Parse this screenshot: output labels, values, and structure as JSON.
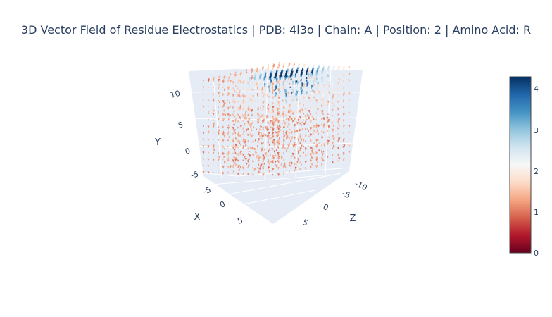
{
  "title": "3D Vector Field of Residue Electrostatics | PDB: 4l3o | Chain: A | Position: 2 | Amino Acid: R",
  "chart_data": {
    "type": "cone",
    "title": "3D Vector Field of Residue Electrostatics | PDB: 4l3o | Chain: A | Position: 2 | Amino Acid: R",
    "axes": {
      "x": {
        "label": "X",
        "ticks": [
          "-5",
          "0",
          "5"
        ],
        "range": [
          -10,
          8
        ]
      },
      "y": {
        "label": "Y",
        "ticks": [
          "-5",
          "0",
          "5",
          "10"
        ],
        "range": [
          -7,
          13
        ]
      },
      "z": {
        "label": "Z",
        "ticks": [
          "-10",
          "-5",
          "0",
          "5"
        ],
        "range": [
          -12,
          8
        ]
      }
    },
    "colorbar": {
      "colorscale": "RdBu",
      "range": [
        0,
        4.25
      ],
      "ticks": [
        "0",
        "1",
        "2",
        "3",
        "4"
      ],
      "colors": [
        "#67001f",
        "#b2182b",
        "#d6604d",
        "#f4a582",
        "#fddbc7",
        "#f7f7f7",
        "#d1e5f0",
        "#92c5de",
        "#4393c3",
        "#2166ac",
        "#053061"
      ]
    },
    "magnitude_summary": {
      "min": 0.1,
      "max": 4.2,
      "peak_region": "top face, upper-right (high Y, low Z)"
    },
    "grid_on": true,
    "legend": "colorbar-right"
  }
}
